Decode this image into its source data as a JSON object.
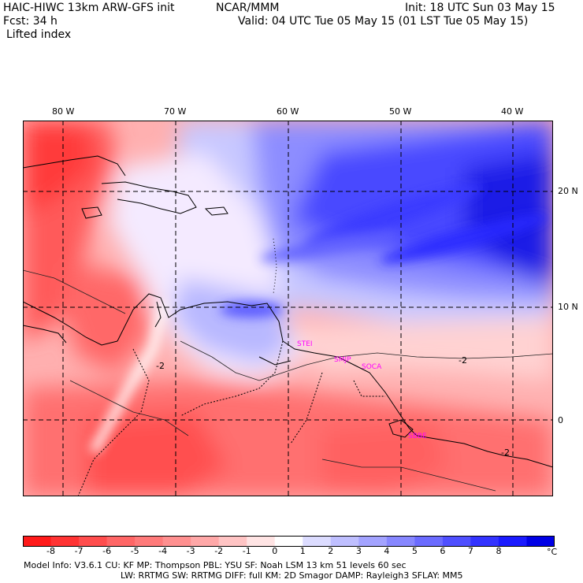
{
  "header": {
    "model_title": "HAIC-HIWC 13km ARW-GFS init",
    "org": "NCAR/MMM",
    "init": "Init: 18 UTC Sun 03 May 15",
    "fcst": "Fcst:   34 h",
    "valid": "Valid: 04 UTC Tue 05 May 15 (01 LST Tue 05 May 15)",
    "field": "Lifted index"
  },
  "map": {
    "lon_labels": [
      "80 W",
      "70 W",
      "60 W",
      "50 W",
      "40 W"
    ],
    "lat_labels": [
      "20 N",
      "10 N",
      "0"
    ],
    "stations": [
      "STEI",
      "SMJP",
      "SOCA",
      "SBBE"
    ],
    "contour_labels": [
      "-2",
      "-2",
      "-2"
    ]
  },
  "colorbar": {
    "ticks": [
      "-8",
      "-7",
      "-6",
      "-5",
      "-4",
      "-3",
      "-2",
      "-1",
      "0",
      "1",
      "2",
      "3",
      "4",
      "5",
      "6",
      "7",
      "8"
    ],
    "unit": "°C",
    "colors": [
      "#ff1a1a",
      "#ff3333",
      "#ff4d4d",
      "#ff6666",
      "#ff7a7a",
      "#ff9090",
      "#ffa8a8",
      "#ffc4c4",
      "#ffe4e4",
      "#ffffff",
      "#dcdcff",
      "#bfbfff",
      "#a3a3ff",
      "#8787ff",
      "#6b6bff",
      "#4f4fff",
      "#3333ff",
      "#1a1aff",
      "#0000e6"
    ]
  },
  "footer": {
    "line1": "Model Info: V3.6.1     CU: KF        MP: Thompson      PBL: YSU          SF: Noah LSM       13 km    51 levels    60 sec",
    "line2": "LW: RRTMG     SW: RRTMG   DIFF: full     KM: 2D Smagor  DAMP: Rayleigh3   SFLAY: MM5"
  }
}
